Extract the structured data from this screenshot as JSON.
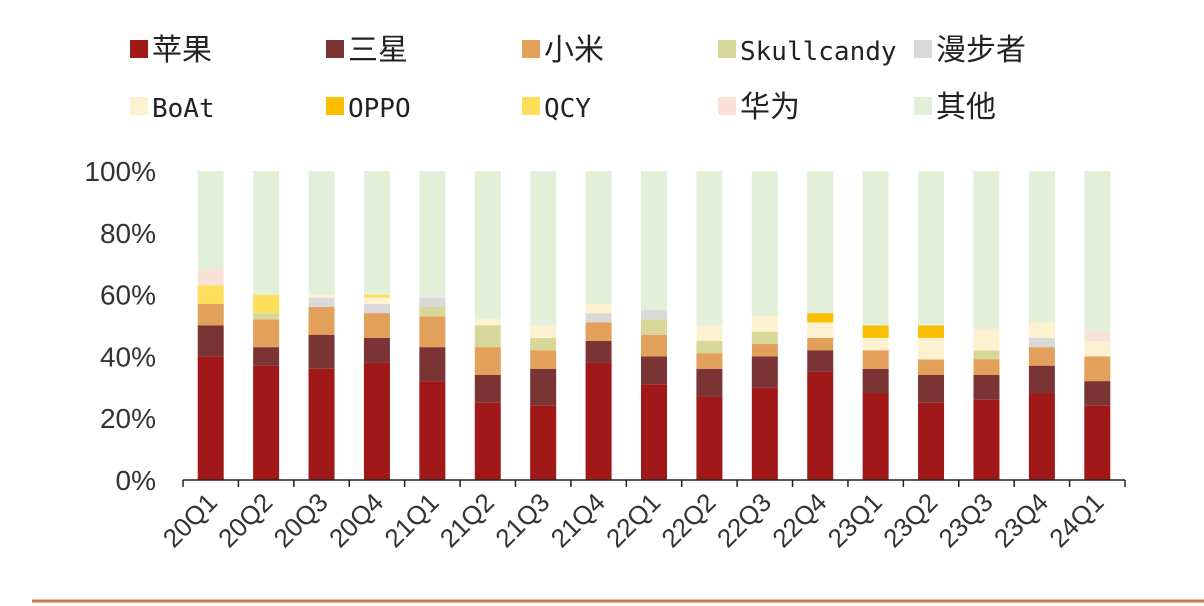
{
  "chart_data": {
    "type": "bar",
    "stacked": true,
    "categories": [
      "20Q1",
      "20Q2",
      "20Q3",
      "20Q4",
      "21Q1",
      "21Q2",
      "21Q3",
      "21Q4",
      "22Q1",
      "22Q2",
      "22Q3",
      "22Q4",
      "23Q1",
      "23Q2",
      "23Q3",
      "23Q4",
      "24Q1"
    ],
    "ylim": [
      0,
      100
    ],
    "yticks": [
      "0%",
      "20%",
      "40%",
      "60%",
      "80%",
      "100%"
    ],
    "legend_position": "top",
    "series": [
      {
        "name": "苹果",
        "color": "#A01818",
        "values": [
          40,
          37,
          36,
          38,
          32,
          25,
          24,
          38,
          31,
          27,
          30,
          35,
          28,
          25,
          26,
          28,
          24
        ]
      },
      {
        "name": "三星",
        "color": "#7B3434",
        "values": [
          10,
          6,
          11,
          8,
          11,
          9,
          12,
          7,
          9,
          9,
          10,
          7,
          8,
          9,
          8,
          9,
          8
        ]
      },
      {
        "name": "小米",
        "color": "#E2A05A",
        "values": [
          7,
          9,
          9,
          8,
          10,
          9,
          6,
          6,
          7,
          5,
          4,
          4,
          6,
          5,
          5,
          6,
          8
        ]
      },
      {
        "name": "Skullcandy",
        "color": "#D8D79A",
        "values": [
          0,
          2,
          0,
          0,
          3,
          7,
          4,
          0,
          5,
          4,
          4,
          0,
          0,
          0,
          3,
          0,
          0
        ]
      },
      {
        "name": "漫步者",
        "color": "#D9D9D9",
        "values": [
          0,
          0,
          3,
          3,
          3,
          0,
          0,
          3,
          3,
          0,
          0,
          0,
          0,
          0,
          0,
          3,
          0
        ]
      },
      {
        "name": "BoAt",
        "color": "#FDF1CF",
        "values": [
          0,
          0,
          1,
          2,
          0,
          2,
          4,
          3,
          0,
          5,
          5,
          5,
          4,
          7,
          7,
          5,
          5
        ]
      },
      {
        "name": "OPPO",
        "color": "#FBBE00",
        "values": [
          0,
          0,
          0,
          0,
          0,
          0,
          0,
          0,
          0,
          0,
          0,
          3,
          4,
          4,
          0,
          0,
          0
        ]
      },
      {
        "name": "QCY",
        "color": "#FFDE5C",
        "values": [
          6,
          6,
          0,
          1,
          0,
          0,
          0,
          0,
          0,
          0,
          0,
          0,
          0,
          0,
          0,
          0,
          0
        ]
      },
      {
        "name": "华为",
        "color": "#F9E1D7",
        "values": [
          5,
          0,
          0,
          0,
          0,
          0,
          0,
          0,
          0,
          0,
          0,
          0,
          0,
          0,
          0,
          0,
          3
        ]
      },
      {
        "name": "其他",
        "color": "#E2EFD9",
        "values": [
          32,
          40,
          40,
          40,
          41,
          48,
          50,
          43,
          45,
          50,
          47,
          46,
          50,
          50,
          51,
          49,
          52
        ]
      }
    ]
  }
}
